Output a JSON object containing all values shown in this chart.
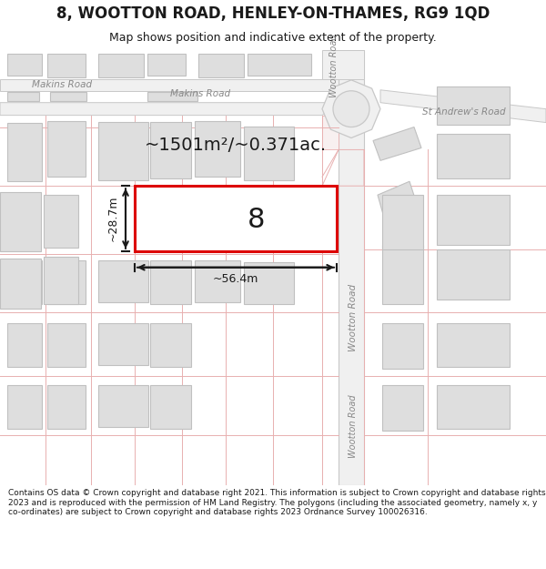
{
  "title": "8, WOOTTON ROAD, HENLEY-ON-THAMES, RG9 1QD",
  "subtitle": "Map shows position and indicative extent of the property.",
  "footer": "Contains OS data © Crown copyright and database right 2021. This information is subject to Crown copyright and database rights 2023 and is reproduced with the permission of HM Land Registry. The polygons (including the associated geometry, namely x, y co-ordinates) are subject to Crown copyright and database rights 2023 Ordnance Survey 100026316.",
  "area_label": "~1501m²/~0.371ac.",
  "width_label": "~56.4m",
  "height_label": "~28.7m",
  "property_number": "8",
  "bg_color": "#ffffff",
  "map_bg": "#ffffff",
  "road_line_color": "#e8b0b0",
  "road_outline_color": "#c8c8c8",
  "building_fill": "#dedede",
  "building_edge": "#c0c0c0",
  "property_fill": "#ffffff",
  "property_edge": "#dd0000",
  "text_color": "#1a1a1a",
  "dim_line_color": "#1a1a1a",
  "street_label_color": "#888888",
  "title_fontsize": 12,
  "subtitle_fontsize": 9,
  "footer_fontsize": 6.5
}
